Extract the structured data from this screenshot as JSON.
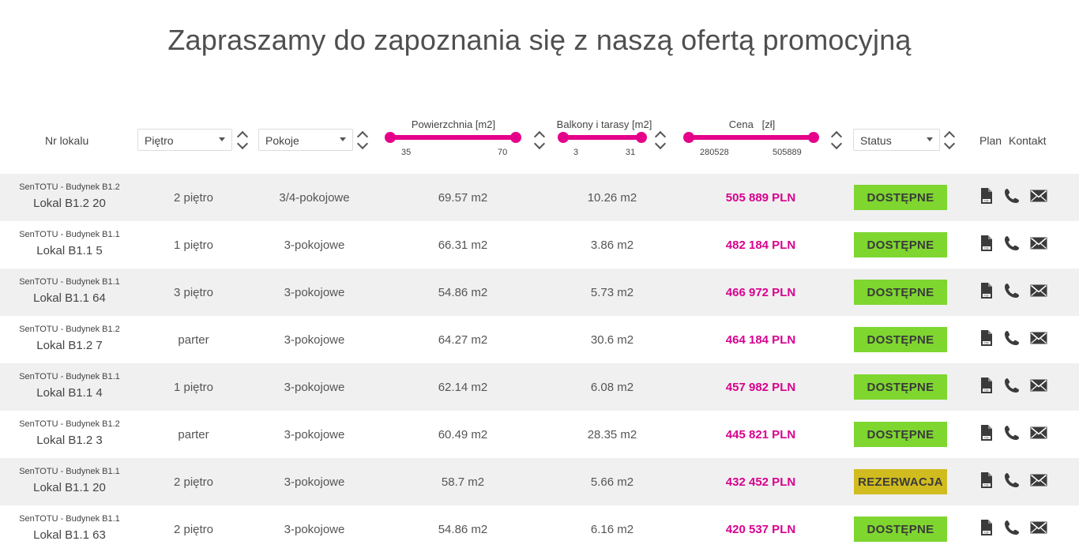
{
  "page": {
    "title": "Zapraszamy do zapoznania się z naszą ofertą promocyjną"
  },
  "colors": {
    "accent": "#e5008a",
    "price": "#d8008f",
    "available": "#7ed62f",
    "reserved": "#d1bc1f",
    "row_alt": "#f0f0f0"
  },
  "filters": {
    "nr_lokalu_label": "Nr lokalu",
    "floor_select": "Piętro",
    "rooms_select": "Pokoje",
    "area": {
      "label": "Powierzchnia [m2]",
      "min": "35",
      "max": "70"
    },
    "balcony": {
      "label": "Balkony i tarasy [m2]",
      "min": "3",
      "max": "31"
    },
    "price": {
      "label": "Cena   [zł]",
      "min": "280528",
      "max": "505889"
    },
    "status_select": "Status",
    "plan_label": "Plan",
    "contact_label": "Kontakt"
  },
  "icons": {
    "pdf": "pdf-file-icon",
    "phone": "phone-icon",
    "mail": "envelope-icon",
    "sort": "sort-arrows-icon",
    "caret": "caret-down-icon"
  },
  "rows": [
    {
      "building": "SenTOTU - Budynek B1.2",
      "unit": "Lokal B1.2 20",
      "floor": "2 piętro",
      "rooms": "3/4-pokojowe",
      "area": "69.57 m2",
      "balcony": "10.26 m2",
      "price": "505 889 PLN",
      "status": "DOSTĘPNE"
    },
    {
      "building": "SenTOTU - Budynek B1.1",
      "unit": "Lokal B1.1 5",
      "floor": "1 piętro",
      "rooms": "3-pokojowe",
      "area": "66.31 m2",
      "balcony": "3.86 m2",
      "price": "482 184 PLN",
      "status": "DOSTĘPNE"
    },
    {
      "building": "SenTOTU - Budynek B1.1",
      "unit": "Lokal B1.1 64",
      "floor": "3 piętro",
      "rooms": "3-pokojowe",
      "area": "54.86 m2",
      "balcony": "5.73 m2",
      "price": "466 972 PLN",
      "status": "DOSTĘPNE"
    },
    {
      "building": "SenTOTU - Budynek B1.2",
      "unit": "Lokal B1.2 7",
      "floor": "parter",
      "rooms": "3-pokojowe",
      "area": "64.27 m2",
      "balcony": "30.6 m2",
      "price": "464 184 PLN",
      "status": "DOSTĘPNE"
    },
    {
      "building": "SenTOTU - Budynek B1.1",
      "unit": "Lokal B1.1 4",
      "floor": "1 piętro",
      "rooms": "3-pokojowe",
      "area": "62.14 m2",
      "balcony": "6.08 m2",
      "price": "457 982 PLN",
      "status": "DOSTĘPNE"
    },
    {
      "building": "SenTOTU - Budynek B1.2",
      "unit": "Lokal B1.2 3",
      "floor": "parter",
      "rooms": "3-pokojowe",
      "area": "60.49 m2",
      "balcony": "28.35 m2",
      "price": "445 821 PLN",
      "status": "DOSTĘPNE"
    },
    {
      "building": "SenTOTU - Budynek B1.1",
      "unit": "Lokal B1.1 20",
      "floor": "2 piętro",
      "rooms": "3-pokojowe",
      "area": "58.7 m2",
      "balcony": "5.66 m2",
      "price": "432 452 PLN",
      "status": "REZERWACJA"
    },
    {
      "building": "SenTOTU - Budynek B1.1",
      "unit": "Lokal B1.1 63",
      "floor": "2 piętro",
      "rooms": "3-pokojowe",
      "area": "54.86 m2",
      "balcony": "6.16 m2",
      "price": "420 537 PLN",
      "status": "DOSTĘPNE"
    }
  ]
}
